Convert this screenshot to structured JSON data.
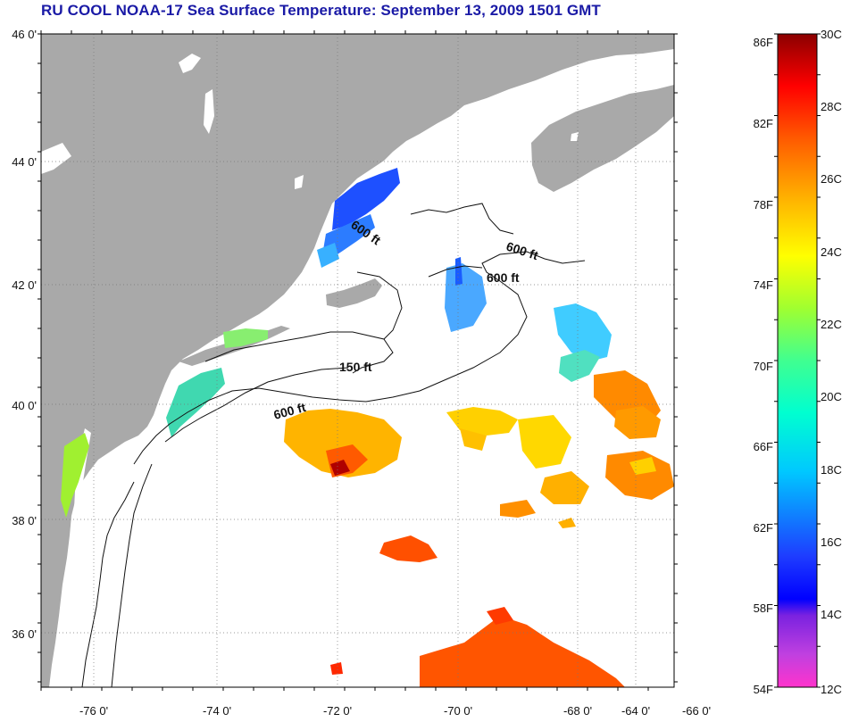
{
  "title": "RU COOL  NOAA-17  Sea Surface Temperature:  September 13, 2009 1501 GMT",
  "map": {
    "lon_range": [
      -77,
      -63
    ],
    "lat_range": [
      35,
      46
    ],
    "lat_labels": [
      "46 0'",
      "44 0'",
      "42 0'",
      "40 0'",
      "38 0'",
      "36 0'"
    ],
    "lon_labels": [
      "-76 0'",
      "-74 0'",
      "-72 0'",
      "-70 0'",
      "-68 0'",
      "-66 0'",
      "-64 0'"
    ],
    "land_color": "#a9a9a9",
    "grid": "dotted",
    "contour_labels": [
      "600 ft",
      "600 ft",
      "600 ft",
      "150 ft",
      "600 ft"
    ]
  },
  "colorbar": {
    "f_labels": [
      "86F",
      "82F",
      "78F",
      "74F",
      "70F",
      "66F",
      "62F",
      "58F",
      "54F"
    ],
    "c_labels": [
      "30C",
      "28C",
      "26C",
      "24C",
      "22C",
      "20C",
      "18C",
      "16C",
      "14C",
      "12C"
    ],
    "c_range": [
      12,
      30
    ]
  }
}
